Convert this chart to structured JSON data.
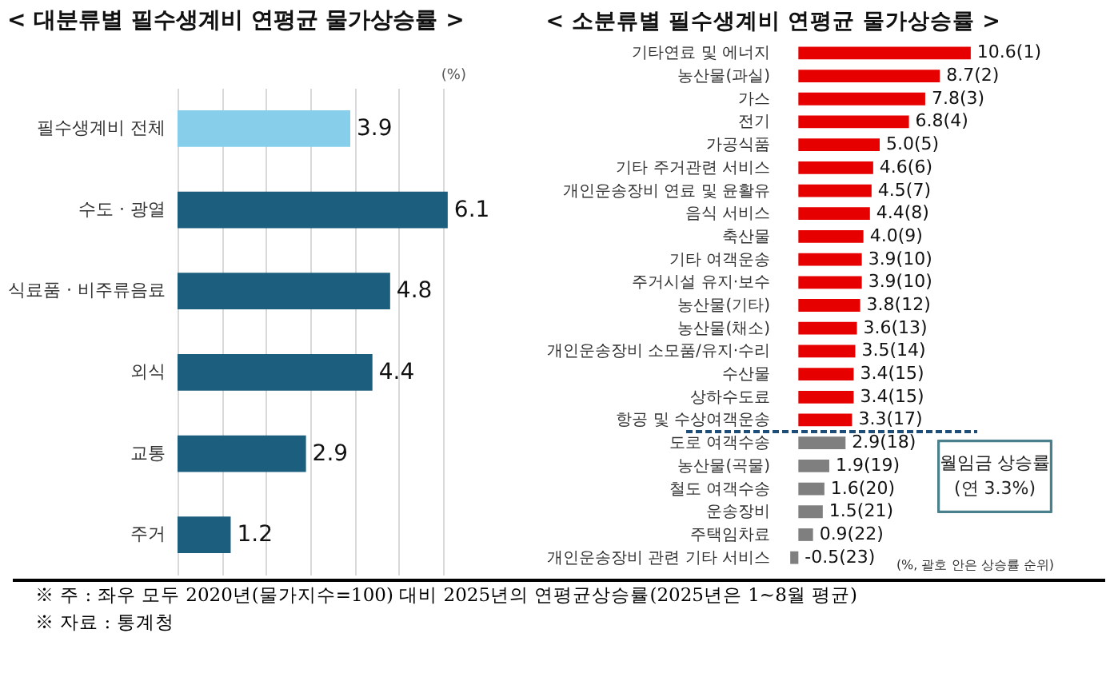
{
  "chart_data": [
    {
      "type": "bar",
      "orientation": "horizontal",
      "title": "< 대분류별 필수생계비 연평균 물가상승률 >",
      "xlabel": "(%)",
      "categories": [
        "필수생계비 전체",
        "수도 · 광열",
        "식료품 · 비주류음료",
        "외식",
        "교통",
        "주거"
      ],
      "values": [
        3.9,
        6.1,
        4.8,
        4.4,
        2.9,
        1.2
      ],
      "colors": [
        "#87ceeb",
        "#1b5e7e",
        "#1b5e7e",
        "#1b5e7e",
        "#1b5e7e",
        "#1b5e7e"
      ],
      "grid": "x",
      "tick_labels": "y",
      "data_labels": true,
      "annotations": [
        "※ 주 : 좌우 모두 2020년(물가지수=100) 대비 2025년의 연평균상승률(2025년은 1~8월 평균)",
        "※ 자료 : 통계청"
      ]
    },
    {
      "type": "bar",
      "orientation": "horizontal",
      "title": "< 소분류별 필수생계비 연평균 물가상승률 >",
      "categories": [
        "기타연료 및 에너지",
        "농산물(과실)",
        "가스",
        "전기",
        "가공식품",
        "기타 주거관련 서비스",
        "개인운송장비 연료 및 윤활유",
        "음식 서비스",
        "축산물",
        "기타 여객운송",
        "주거시설 유지·보수",
        "농산물(기타)",
        "농산물(채소)",
        "개인운송장비 소모품/유지·수리",
        "수산물",
        "상하수도료",
        "항공 및 수상여객운송",
        "도로 여객수송",
        "농산물(곡물)",
        "철도 여객수송",
        "운송장비",
        "주택임차료",
        "개인운송장비 관련 기타 서비스"
      ],
      "values": [
        10.6,
        8.7,
        7.8,
        6.8,
        5.0,
        4.6,
        4.5,
        4.4,
        4.0,
        3.9,
        3.9,
        3.8,
        3.6,
        3.5,
        3.4,
        3.4,
        3.3,
        2.9,
        1.9,
        1.6,
        1.5,
        0.9,
        -0.5
      ],
      "colors": [
        "#e60000",
        "#e60000",
        "#e60000",
        "#e60000",
        "#e60000",
        "#e60000",
        "#e60000",
        "#e60000",
        "#e60000",
        "#e60000",
        "#e60000",
        "#e60000",
        "#e60000",
        "#e60000",
        "#e60000",
        "#e60000",
        "#e60000",
        "#7f7f7f",
        "#7f7f7f",
        "#7f7f7f",
        "#7f7f7f",
        "#7f7f7f",
        "#7f7f7f"
      ],
      "value_labels": [
        "10.6(1)",
        "8.7(2)",
        "7.8(3)",
        "6.8(4)",
        "5.0(5)",
        "4.6(6)",
        "4.5(7)",
        "4.4(8)",
        "4.0(9)",
        "3.9(10)",
        "3.9(10)",
        "3.8(12)",
        "3.6(13)",
        "3.5(14)",
        "3.4(15)",
        "3.4(15)",
        "3.3(17)",
        "2.9(18)",
        "1.9(19)",
        "1.6(20)",
        "1.5(21)",
        "0.9(22)",
        "-0.5(23)"
      ],
      "tick_labels": "y",
      "ref_lines": [
        {
          "axis": "y",
          "value": "도로 여객수송",
          "line_style": "dashed",
          "color": "#1f4e79"
        }
      ],
      "annotations": [
        "(%, 괄호 안은 상승률 순위)",
        "월임금 상승률\n(연 3.3%)"
      ]
    }
  ]
}
